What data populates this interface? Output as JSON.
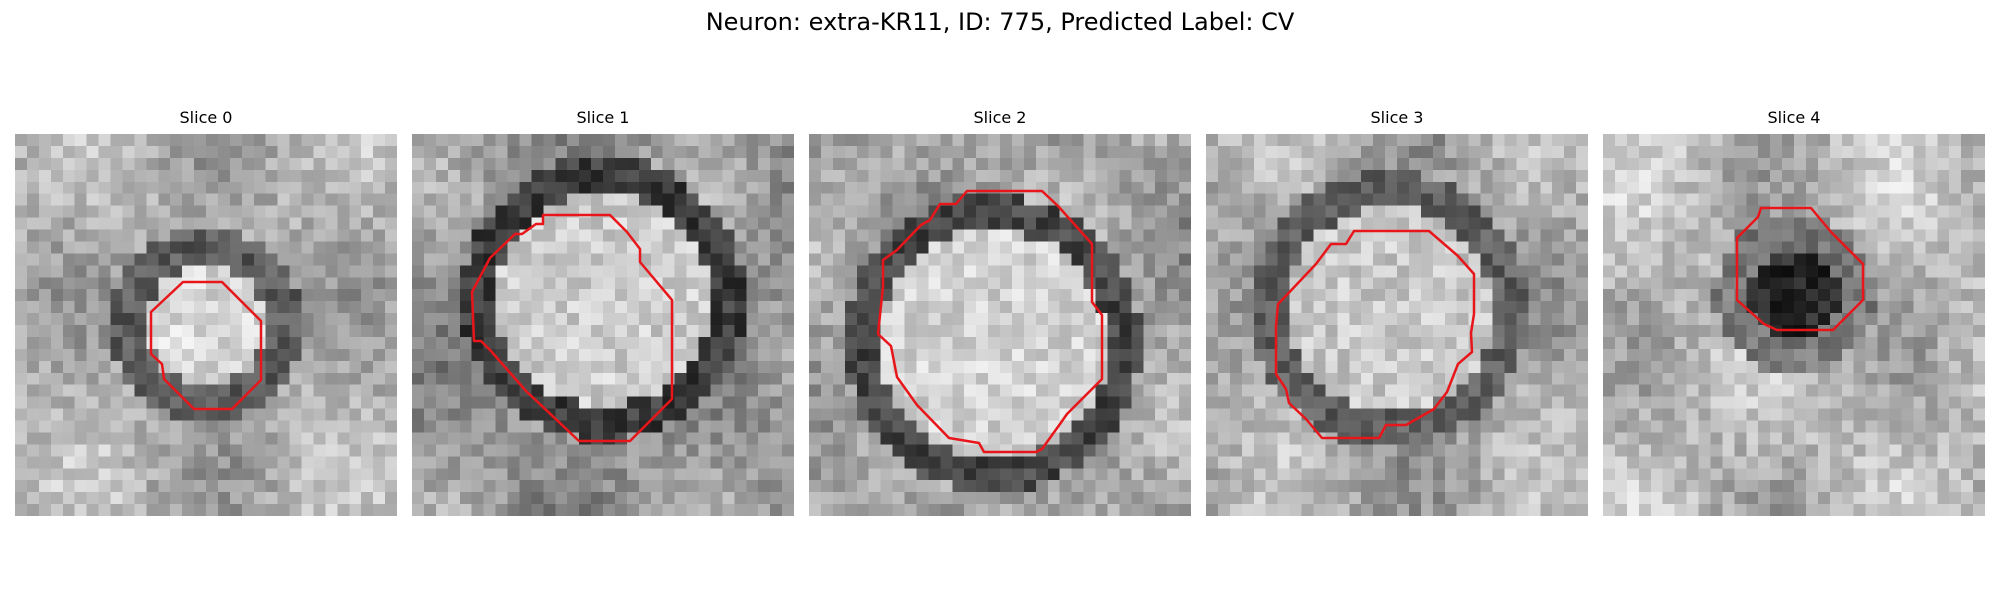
{
  "title": "Neuron: extra-KR11, ID: 775, Predicted Label: CV",
  "colors": {
    "contour": "#e8161a",
    "background": "#ffffff"
  },
  "panels": [
    {
      "title": "Slice 0"
    },
    {
      "title": "Slice 1"
    },
    {
      "title": "Slice 2"
    },
    {
      "title": "Slice 3"
    },
    {
      "title": "Slice 4"
    }
  ]
}
